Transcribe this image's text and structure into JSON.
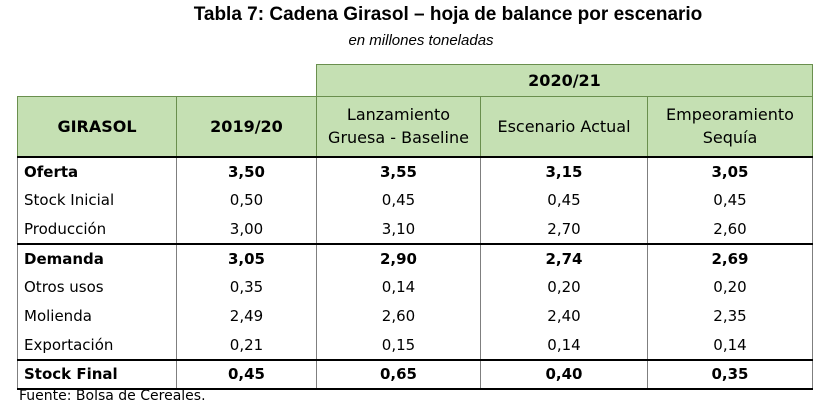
{
  "title": "Tabla 7: Cadena Girasol – hoja de balance por escenario",
  "subtitle": "en millones toneladas",
  "header": {
    "group_label": "2020/21",
    "row_label": "GIRASOL",
    "col_2019": "2019/20",
    "col_baseline_line1": "Lanzamiento",
    "col_baseline_line2": "Gruesa - Baseline",
    "col_actual": "Escenario Actual",
    "col_sequia_line1": "Empeoramiento",
    "col_sequia_line2": "Sequía"
  },
  "rows": [
    {
      "label": "Oferta",
      "v2019": "3,50",
      "baseline": "3,55",
      "actual": "3,15",
      "sequia": "3,05"
    },
    {
      "label": "Stock Inicial",
      "v2019": "0,50",
      "baseline": "0,45",
      "actual": "0,45",
      "sequia": "0,45"
    },
    {
      "label": "Producción",
      "v2019": "3,00",
      "baseline": "3,10",
      "actual": "2,70",
      "sequia": "2,60"
    },
    {
      "label": "Demanda",
      "v2019": "3,05",
      "baseline": "2,90",
      "actual": "2,74",
      "sequia": "2,69"
    },
    {
      "label": "Otros usos",
      "v2019": "0,35",
      "baseline": "0,14",
      "actual": "0,20",
      "sequia": "0,20"
    },
    {
      "label": "Molienda",
      "v2019": "2,49",
      "baseline": "2,60",
      "actual": "2,40",
      "sequia": "2,35"
    },
    {
      "label": "Exportación",
      "v2019": "0,21",
      "baseline": "0,15",
      "actual": "0,14",
      "sequia": "0,14"
    },
    {
      "label": "Stock Final",
      "v2019": "0,45",
      "baseline": "0,65",
      "actual": "0,40",
      "sequia": "0,35"
    }
  ],
  "source": "Fuente: Bolsa de Cereales."
}
